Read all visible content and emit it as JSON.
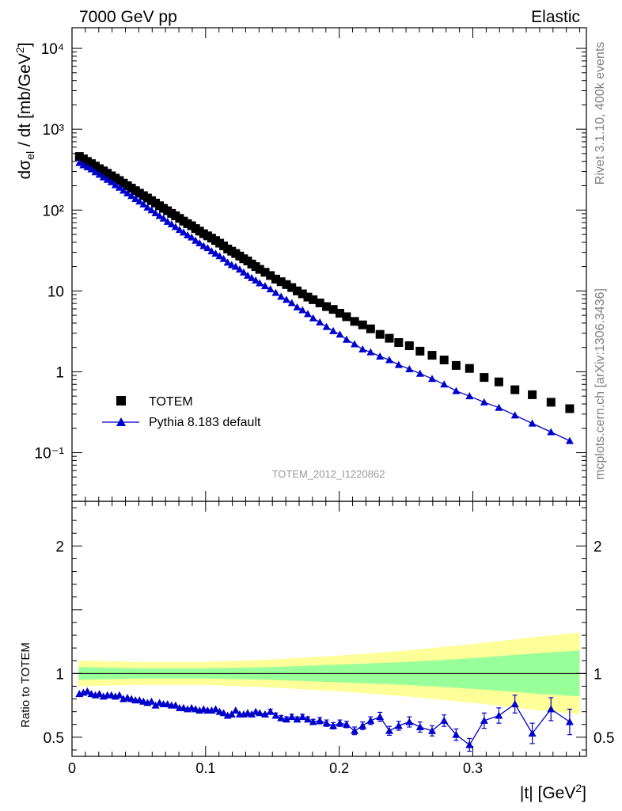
{
  "header": {
    "left": "7000 GeV pp",
    "right": "Elastic"
  },
  "side_text": {
    "top": "Rivet 3.1.10,  400k events",
    "bottom": "mcplots.cern.ch [arXiv:1306.3436]"
  },
  "watermark": "TOTEM_2012_I1220862",
  "chart_data": [
    {
      "type": "scatter",
      "panel": "main",
      "ylabel": "dσel / dt [mb/GeV²]",
      "yscale": "log",
      "ylim": [
        0.025,
        18000
      ],
      "xlim": [
        0,
        0.385
      ],
      "y_tick_labels": [
        "10⁻¹",
        "1",
        "10",
        "10²",
        "10³",
        "10⁴"
      ],
      "legend": {
        "placement": "bottom-left",
        "entries": [
          "TOTEM",
          "Pythia 8.183 default"
        ]
      },
      "series": [
        {
          "name": "TOTEM",
          "marker": "square",
          "color": "#000000",
          "x": [
            0.0055,
            0.0085,
            0.0115,
            0.0145,
            0.0175,
            0.0205,
            0.0235,
            0.0265,
            0.0295,
            0.0325,
            0.0355,
            0.0385,
            0.0415,
            0.0445,
            0.0475,
            0.0505,
            0.0535,
            0.0565,
            0.0595,
            0.0625,
            0.0655,
            0.0685,
            0.0715,
            0.0745,
            0.0775,
            0.0805,
            0.0835,
            0.0865,
            0.0895,
            0.0925,
            0.0955,
            0.0985,
            0.1015,
            0.1045,
            0.1075,
            0.1105,
            0.1135,
            0.1165,
            0.1195,
            0.1225,
            0.1255,
            0.1285,
            0.1315,
            0.1345,
            0.1375,
            0.1405,
            0.1445,
            0.1485,
            0.1525,
            0.1565,
            0.1605,
            0.1645,
            0.1685,
            0.1725,
            0.1765,
            0.1805,
            0.1855,
            0.1905,
            0.1955,
            0.2005,
            0.2055,
            0.2115,
            0.2175,
            0.2235,
            0.2305,
            0.2375,
            0.2445,
            0.2525,
            0.2605,
            0.2695,
            0.2785,
            0.2875,
            0.2975,
            0.3085,
            0.3195,
            0.3315,
            0.3445,
            0.3585,
            0.3725
          ],
          "y": [
            460,
            430,
            400,
            375,
            350,
            325,
            305,
            285,
            265,
            248,
            232,
            215,
            200,
            187,
            174,
            162,
            151,
            141,
            131,
            122,
            113,
            105,
            98,
            91,
            85,
            79,
            73,
            68,
            64,
            59,
            55,
            51,
            48,
            45,
            42,
            39,
            36,
            33,
            31,
            29,
            27,
            25,
            23.5,
            21.5,
            20,
            18.5,
            17,
            15.5,
            14,
            13,
            12,
            11,
            10,
            9.2,
            8.4,
            7.8,
            7.1,
            6.4,
            5.9,
            5.3,
            4.8,
            4.2,
            3.8,
            3.4,
            2.9,
            2.6,
            2.3,
            2.1,
            1.8,
            1.6,
            1.4,
            1.2,
            1.1,
            0.85,
            0.75,
            0.6,
            0.52,
            0.42,
            0.35
          ]
        },
        {
          "name": "Pythia 8.183 default",
          "marker": "triangle",
          "color": "#0000cc",
          "x": [
            0.0055,
            0.0085,
            0.0115,
            0.0145,
            0.0175,
            0.0205,
            0.0235,
            0.0265,
            0.0295,
            0.0325,
            0.0355,
            0.0385,
            0.0415,
            0.0445,
            0.0475,
            0.0505,
            0.0535,
            0.0565,
            0.0595,
            0.0625,
            0.0655,
            0.0685,
            0.0715,
            0.0745,
            0.0775,
            0.0805,
            0.0835,
            0.0865,
            0.0895,
            0.0925,
            0.0955,
            0.0985,
            0.1015,
            0.1045,
            0.1075,
            0.1105,
            0.1135,
            0.1165,
            0.1195,
            0.1225,
            0.1255,
            0.1285,
            0.1315,
            0.1345,
            0.1375,
            0.1405,
            0.1445,
            0.1485,
            0.1525,
            0.1565,
            0.1605,
            0.1645,
            0.1685,
            0.1725,
            0.1765,
            0.1805,
            0.1855,
            0.1905,
            0.1955,
            0.2005,
            0.2055,
            0.2115,
            0.2175,
            0.2235,
            0.2305,
            0.2375,
            0.2445,
            0.2525,
            0.2605,
            0.2695,
            0.2785,
            0.2875,
            0.2975,
            0.3085,
            0.3195,
            0.3315,
            0.3445,
            0.3585,
            0.3725
          ],
          "y": [
            385,
            360,
            340,
            320,
            295,
            275,
            255,
            238,
            222,
            204,
            190,
            175,
            162,
            150,
            138,
            128,
            118,
            108,
            100,
            92,
            85,
            79,
            72,
            67,
            62,
            57,
            53,
            49,
            46,
            42,
            39,
            36,
            34,
            31,
            29,
            27,
            25,
            22.5,
            21,
            20,
            18.5,
            17,
            15.5,
            14.5,
            13.5,
            12.5,
            11.5,
            10.5,
            9.5,
            8.5,
            7.8,
            7.1,
            6.3,
            5.8,
            5.2,
            4.6,
            4.1,
            3.6,
            3.2,
            2.9,
            2.5,
            2.2,
            1.9,
            1.75,
            1.55,
            1.4,
            1.22,
            1.08,
            0.95,
            0.82,
            0.7,
            0.58,
            0.5,
            0.42,
            0.36,
            0.29,
            0.23,
            0.18,
            0.14
          ]
        }
      ]
    },
    {
      "type": "line",
      "panel": "ratio",
      "xlabel": "|t| [GeV²]",
      "ylabel": "Ratio to TOTEM",
      "ylim": [
        0.35,
        2.35
      ],
      "xlim": [
        0,
        0.385
      ],
      "x_tick_labels": [
        "0",
        "0.1",
        "0.2",
        "0.3"
      ],
      "y_tick_labels": [
        "0.5",
        "1",
        "2"
      ],
      "bands": {
        "x": [
          0.005,
          0.05,
          0.1,
          0.15,
          0.2,
          0.25,
          0.3,
          0.35,
          0.38
        ],
        "inner": [
          0.05,
          0.04,
          0.04,
          0.05,
          0.07,
          0.09,
          0.12,
          0.16,
          0.18
        ],
        "outer": [
          0.1,
          0.09,
          0.09,
          0.11,
          0.14,
          0.18,
          0.23,
          0.29,
          0.32
        ],
        "inner_color": "#99ff99",
        "outer_color": "#ffff99"
      },
      "series": [
        {
          "name": "Pythia 8.183 default",
          "color": "#0000cc",
          "x": [
            0.0055,
            0.0085,
            0.0115,
            0.0145,
            0.0175,
            0.0205,
            0.0235,
            0.0265,
            0.0295,
            0.0325,
            0.0355,
            0.0385,
            0.0415,
            0.0445,
            0.0475,
            0.0505,
            0.0535,
            0.0565,
            0.0595,
            0.0625,
            0.0655,
            0.0685,
            0.0715,
            0.0745,
            0.0775,
            0.0805,
            0.0835,
            0.0865,
            0.0895,
            0.0925,
            0.0955,
            0.0985,
            0.1015,
            0.1045,
            0.1075,
            0.1105,
            0.1135,
            0.1165,
            0.1195,
            0.1225,
            0.1255,
            0.1285,
            0.1315,
            0.1345,
            0.1375,
            0.1405,
            0.1445,
            0.1485,
            0.1525,
            0.1565,
            0.1605,
            0.1645,
            0.1685,
            0.1725,
            0.1765,
            0.1805,
            0.1855,
            0.1905,
            0.1955,
            0.2005,
            0.2055,
            0.2115,
            0.2175,
            0.2235,
            0.2305,
            0.2375,
            0.2445,
            0.2525,
            0.2605,
            0.2695,
            0.2785,
            0.2875,
            0.2975,
            0.3085,
            0.3195,
            0.3315,
            0.3445,
            0.3585,
            0.3725
          ],
          "y": [
            0.84,
            0.85,
            0.86,
            0.84,
            0.83,
            0.84,
            0.82,
            0.83,
            0.83,
            0.82,
            0.83,
            0.8,
            0.81,
            0.8,
            0.79,
            0.79,
            0.78,
            0.77,
            0.78,
            0.75,
            0.77,
            0.76,
            0.76,
            0.75,
            0.75,
            0.73,
            0.73,
            0.72,
            0.73,
            0.72,
            0.71,
            0.72,
            0.71,
            0.71,
            0.72,
            0.7,
            0.69,
            0.67,
            0.68,
            0.71,
            0.68,
            0.68,
            0.69,
            0.68,
            0.7,
            0.69,
            0.68,
            0.7,
            0.67,
            0.65,
            0.64,
            0.66,
            0.64,
            0.66,
            0.64,
            0.62,
            0.63,
            0.61,
            0.59,
            0.61,
            0.6,
            0.55,
            0.59,
            0.63,
            0.66,
            0.55,
            0.59,
            0.62,
            0.58,
            0.55,
            0.63,
            0.52,
            0.44,
            0.63,
            0.67,
            0.76,
            0.53,
            0.72,
            0.62
          ],
          "err": [
            0.01,
            0.01,
            0.01,
            0.01,
            0.01,
            0.01,
            0.01,
            0.01,
            0.01,
            0.01,
            0.01,
            0.01,
            0.01,
            0.01,
            0.01,
            0.01,
            0.01,
            0.01,
            0.01,
            0.01,
            0.01,
            0.01,
            0.01,
            0.01,
            0.01,
            0.01,
            0.01,
            0.01,
            0.01,
            0.01,
            0.01,
            0.01,
            0.01,
            0.01,
            0.01,
            0.01,
            0.01,
            0.015,
            0.015,
            0.015,
            0.015,
            0.015,
            0.015,
            0.015,
            0.015,
            0.015,
            0.015,
            0.02,
            0.02,
            0.02,
            0.02,
            0.02,
            0.02,
            0.02,
            0.02,
            0.02,
            0.025,
            0.025,
            0.025,
            0.025,
            0.025,
            0.03,
            0.03,
            0.03,
            0.035,
            0.035,
            0.035,
            0.04,
            0.04,
            0.04,
            0.045,
            0.045,
            0.05,
            0.06,
            0.06,
            0.07,
            0.08,
            0.09,
            0.1
          ]
        }
      ]
    }
  ]
}
